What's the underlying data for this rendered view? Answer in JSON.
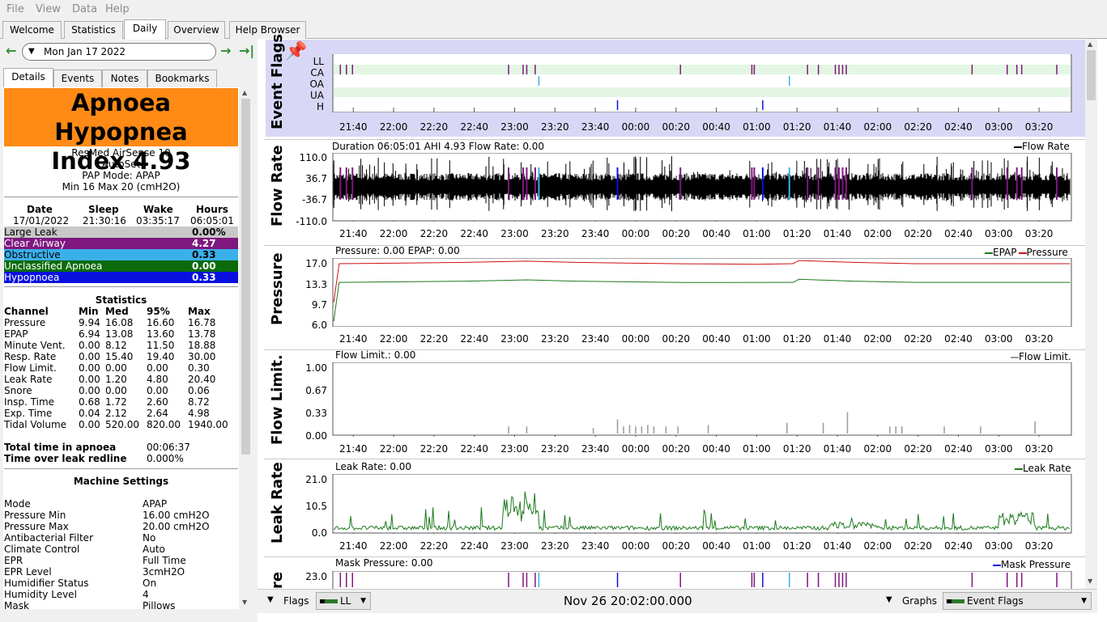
{
  "menu": [
    "File",
    "View",
    "Data",
    "Help"
  ],
  "tabs": [
    "Welcome",
    "Statistics",
    "Daily",
    "Overview",
    "Help Browser"
  ],
  "active_tab": "Daily",
  "date_nav": {
    "date": "Mon Jan 17 2022"
  },
  "subtabs": [
    "Details",
    "Events",
    "Notes",
    "Bookmarks"
  ],
  "ahi": {
    "line1": "Apnoea Hypopnea",
    "line2": "Index 4.93",
    "color": "#ff8a16"
  },
  "machine": {
    "name": "ResMed AirSense 10",
    "model": "AutoSet",
    "mode_line": "PAP Mode: APAP",
    "pressure_line": "Min 16 Max 20 (cmH2O)"
  },
  "session": {
    "headers": [
      "Date",
      "Sleep",
      "Wake",
      "Hours"
    ],
    "values": [
      "17/01/2022",
      "21:30:16",
      "03:35:17",
      "06:05:01"
    ]
  },
  "events": [
    {
      "label": "Large Leak",
      "value": "0.00%",
      "bg": "#c8c8c8",
      "fg": "#000000"
    },
    {
      "label": "Clear Airway",
      "value": "4.27",
      "bg": "#7f177f",
      "fg": "#ffffff"
    },
    {
      "label": "Obstructive",
      "value": "0.33",
      "bg": "#3ab0ea",
      "fg": "#000000"
    },
    {
      "label": "Unclassified Apnoea",
      "value": "0.00",
      "bg": "#0b6b0b",
      "fg": "#ffffff"
    },
    {
      "label": "Hypopnoea",
      "value": "0.33",
      "bg": "#0a10e0",
      "fg": "#ffffff"
    }
  ],
  "stats": {
    "title": "Statistics",
    "headers": [
      "Channel",
      "Min",
      "Med",
      "95%",
      "Max"
    ],
    "rows": [
      [
        "Pressure",
        "9.94",
        "16.08",
        "16.60",
        "16.78"
      ],
      [
        "EPAP",
        "6.94",
        "13.08",
        "13.60",
        "13.78"
      ],
      [
        "Minute Vent.",
        "0.00",
        "8.12",
        "11.50",
        "18.88"
      ],
      [
        "Resp. Rate",
        "0.00",
        "15.40",
        "19.40",
        "30.00"
      ],
      [
        "Flow Limit.",
        "0.00",
        "0.00",
        "0.00",
        "0.30"
      ],
      [
        "Leak Rate",
        "0.00",
        "1.20",
        "4.80",
        "20.40"
      ],
      [
        "Snore",
        "0.00",
        "0.00",
        "0.00",
        "0.06"
      ],
      [
        "Insp. Time",
        "0.68",
        "1.72",
        "2.60",
        "8.72"
      ],
      [
        "Exp. Time",
        "0.04",
        "2.12",
        "2.64",
        "4.98"
      ],
      [
        "Tidal Volume",
        "0.00",
        "520.00",
        "820.00",
        "1940.00"
      ]
    ]
  },
  "totals": [
    {
      "label": "Total time in apnoea",
      "value": "00:06:37"
    },
    {
      "label": "Time over leak redline",
      "value": "0.000%"
    }
  ],
  "settings": {
    "title": "Machine Settings",
    "rows": [
      [
        "Mode",
        "APAP"
      ],
      [
        "Pressure Min",
        "16.00 cmH2O"
      ],
      [
        "Pressure Max",
        "20.00 cmH2O"
      ],
      [
        "Antibacterial Filter",
        "No"
      ],
      [
        "Climate Control",
        "Auto"
      ],
      [
        "EPR",
        "Full Time"
      ],
      [
        "EPR Level",
        "3cmH2O"
      ],
      [
        "Humidifier Status",
        "On"
      ],
      [
        "Humidity Level",
        "4"
      ],
      [
        "Mask",
        "Pillows"
      ]
    ]
  },
  "time_ticks": [
    "21:40",
    "22:00",
    "22:20",
    "22:40",
    "23:00",
    "23:20",
    "23:40",
    "00:00",
    "00:20",
    "00:40",
    "01:00",
    "01:20",
    "01:40",
    "02:00",
    "02:20",
    "02:40",
    "03:00",
    "03:20"
  ],
  "graphs": {
    "event_flags": {
      "title": "Event Flags",
      "rows": [
        "LL",
        "CA",
        "OA",
        "UA",
        "H"
      ]
    },
    "flow_rate": {
      "title": "Flow Rate",
      "info": "Duration 06:05:01 AHI 4.93 Flow Rate: 0.00",
      "legend": "Flow Rate",
      "yticks": [
        "110.0",
        "36.7",
        "-36.7",
        "-110.0"
      ]
    },
    "pressure": {
      "title": "Pressure",
      "info": "Pressure: 0.00 EPAP: 0.00",
      "legend_epap": "EPAP",
      "legend_pressure": "Pressure",
      "yticks": [
        "17.0",
        "13.3",
        "9.7",
        "6.0"
      ]
    },
    "flow_limit": {
      "title": "Flow Limit.",
      "info": "Flow Limit.: 0.00",
      "legend": "Flow Limit.",
      "yticks": [
        "1.00",
        "0.67",
        "0.33",
        "0.00"
      ]
    },
    "leak_rate": {
      "title": "Leak Rate",
      "info": "Leak Rate: 0.00",
      "legend": "Leak Rate",
      "yticks": [
        "21.0",
        "10.5",
        "0.0"
      ]
    },
    "mask_pressure": {
      "title": "re",
      "info": "Mask Pressure: 0.00",
      "legend": "Mask Pressure",
      "yticks": [
        "23.0"
      ]
    }
  },
  "bottom": {
    "flags_label": "Flags",
    "flags_value": "LL",
    "clock": "Nov 26 20:02:00.000",
    "graphs_label": "Graphs",
    "graphs_value": "Event Flags"
  },
  "colors": {
    "ca": "#7f177f",
    "oa": "#3ab0ea",
    "h": "#0a10e0",
    "epap": "#1c7a1c",
    "pressure": "#d01010",
    "leak": "#1c7a1c",
    "flowlimit": "#9a9a9a"
  }
}
